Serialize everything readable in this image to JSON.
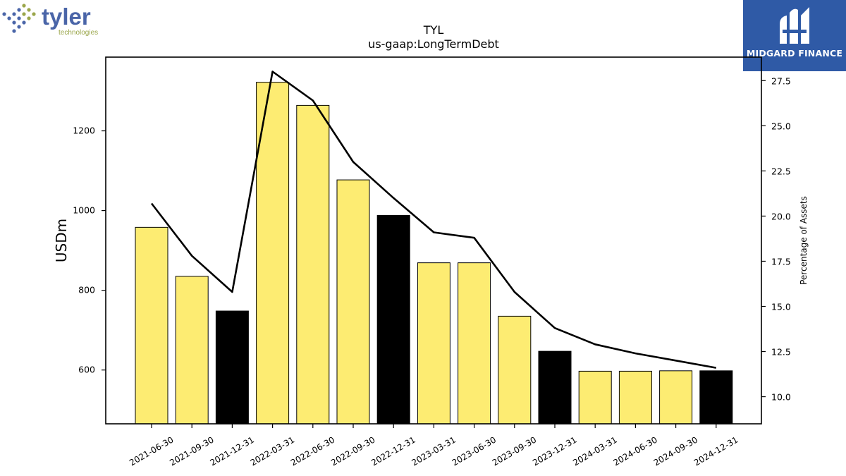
{
  "logos": {
    "tyler": {
      "name": "tyler",
      "subtitle": "technologies"
    },
    "midgard": {
      "name": "MIDGARD FINANCE"
    }
  },
  "colors": {
    "bar_default": "#fdec72",
    "bar_highlight": "#000000",
    "line": "#000000",
    "midgard_bg": "#2f5aa6",
    "tyler_blue": "#4a65a8",
    "tyler_green": "#9aa64a"
  },
  "chart_data": {
    "type": "bar",
    "title": "TYL",
    "subtitle": "us-gaap:LongTermDebt",
    "ylabel": "USDm",
    "y2label": "Percentage of Assets",
    "categories": [
      "2021-06-30",
      "2021-09-30",
      "2021-12-31",
      "2022-03-31",
      "2022-06-30",
      "2022-09-30",
      "2022-12-31",
      "2023-03-31",
      "2023-06-30",
      "2023-09-30",
      "2023-12-31",
      "2024-03-31",
      "2024-06-30",
      "2024-09-30",
      "2024-12-31"
    ],
    "series": [
      {
        "kind": "bar",
        "axis": "left",
        "values": [
          958,
          835,
          748,
          1322,
          1264,
          1077,
          988,
          869,
          869,
          735,
          647,
          597,
          597,
          598,
          598
        ],
        "highlight": [
          false,
          false,
          true,
          false,
          false,
          false,
          true,
          false,
          false,
          false,
          true,
          false,
          false,
          false,
          true
        ]
      },
      {
        "kind": "line",
        "axis": "right",
        "values": [
          20.7,
          17.8,
          15.8,
          28.0,
          26.4,
          23.0,
          21.0,
          19.1,
          18.8,
          15.8,
          13.8,
          12.9,
          12.4,
          12.0,
          11.6
        ]
      }
    ],
    "ylim": [
      465,
      1385
    ],
    "y2lim": [
      8.5,
      28.8
    ],
    "yticks": [
      600,
      800,
      1000,
      1200
    ],
    "y2ticks": [
      "10.0",
      "12.5",
      "15.0",
      "17.5",
      "20.0",
      "22.5",
      "25.0",
      "27.5"
    ],
    "grid": false,
    "legend": "none"
  }
}
